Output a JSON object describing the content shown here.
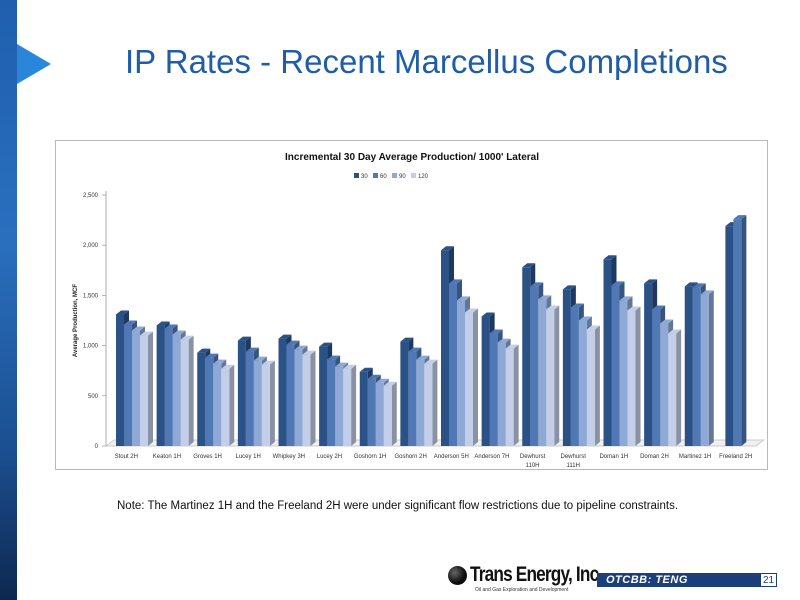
{
  "slide": {
    "title": "IP Rates - Recent Marcellus Completions",
    "note": "Note: The Martinez 1H and the Freeland 2H were under significant flow restrictions due to pipeline constraints.",
    "page_number": "21",
    "ticker": "OTCBB: TENG",
    "logo_text": "Trans Energy, Inc.",
    "logo_tagline": "Oil and Gas Exploration and Development"
  },
  "colors": {
    "title": "#1f5da8",
    "side_bar": "#1f5fae",
    "arrow": "#2a86d8",
    "ticker_bg": "#1c3f7a",
    "series": [
      "#2b5287",
      "#4f78b4",
      "#8fa9d6",
      "#c3cfe8"
    ]
  },
  "chart_data": {
    "type": "bar",
    "title": "Incremental 30 Day Average Production/ 1000' Lateral",
    "ylabel": "Average Production, MCF",
    "xlabel": "",
    "ylim": [
      0,
      2500
    ],
    "yticks": [
      "0",
      "500",
      "1,000",
      "1,500",
      "2,000",
      "2,500"
    ],
    "legend_position": "top",
    "grid": false,
    "categories": [
      [
        "Stout 2H"
      ],
      [
        "Keaton 1H"
      ],
      [
        "Groves 1H"
      ],
      [
        "Lucey 1H"
      ],
      [
        "Whipkey 3H"
      ],
      [
        "Lucey 2H"
      ],
      [
        "Goshorn 1H"
      ],
      [
        "Goshorn 2H"
      ],
      [
        "Anderson 5H"
      ],
      [
        "Anderson 7H"
      ],
      [
        "Dewhurst",
        "110H"
      ],
      [
        "Dewhurst",
        "111H"
      ],
      [
        "Doman 1H"
      ],
      [
        "Doman 2H"
      ],
      [
        "Martinez 1H"
      ],
      [
        "Freeland 2H"
      ]
    ],
    "series": [
      {
        "name": "30",
        "values": [
          1310,
          1200,
          930,
          1050,
          1070,
          990,
          740,
          1040,
          1950,
          1290,
          1780,
          1560,
          1860,
          1620,
          1590,
          2190
        ]
      },
      {
        "name": "60",
        "values": [
          1210,
          1170,
          880,
          940,
          1010,
          860,
          670,
          940,
          1620,
          1120,
          1590,
          1380,
          1600,
          1360,
          1580,
          2260
        ]
      },
      {
        "name": "90",
        "values": [
          1150,
          1110,
          820,
          850,
          960,
          790,
          630,
          860,
          1450,
          1030,
          1460,
          1250,
          1450,
          1220,
          1510,
          null
        ]
      },
      {
        "name": "120",
        "values": [
          1100,
          1060,
          770,
          810,
          910,
          770,
          600,
          820,
          1330,
          970,
          1360,
          1160,
          1350,
          1120,
          null,
          null
        ]
      }
    ]
  }
}
